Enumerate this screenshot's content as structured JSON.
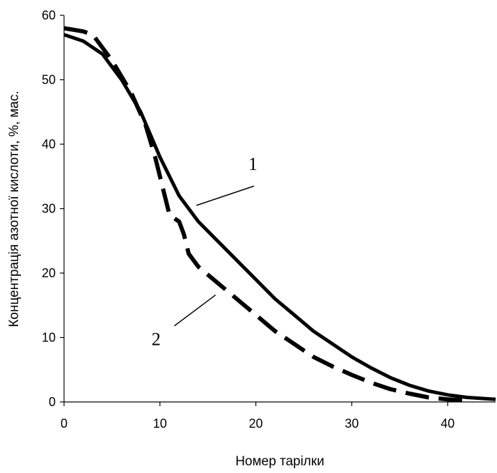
{
  "chart_data": {
    "type": "line",
    "title": "",
    "xlabel": "Номер тарілки",
    "ylabel": "Концентрація азотної кислоти, %, мас.",
    "xlim": [
      0,
      45
    ],
    "ylim": [
      0,
      60
    ],
    "xticks": [
      0,
      10,
      20,
      30,
      40
    ],
    "yticks": [
      0,
      10,
      20,
      30,
      40,
      50,
      60
    ],
    "grid": false,
    "legend": "none",
    "series": [
      {
        "name": "1",
        "style": "solid",
        "color": "#000000",
        "x": [
          0,
          2,
          4,
          6,
          8,
          10,
          12,
          14,
          16,
          18,
          20,
          22,
          24,
          26,
          28,
          30,
          32,
          34,
          36,
          38,
          40,
          42,
          45
        ],
        "y": [
          57,
          56,
          54,
          50,
          45,
          38,
          32,
          28,
          25,
          22,
          19,
          16,
          13.5,
          11,
          9,
          7,
          5.3,
          3.8,
          2.6,
          1.7,
          1.1,
          0.7,
          0.4
        ]
      },
      {
        "name": "2",
        "style": "dashed",
        "color": "#000000",
        "x": [
          0,
          2,
          3,
          5,
          7,
          8.5,
          9.5,
          10,
          10.5,
          11,
          11.5,
          12,
          12.5,
          13,
          14,
          16,
          18,
          20,
          22,
          24,
          26,
          28,
          30,
          32,
          34,
          36,
          38,
          40,
          42
        ],
        "y": [
          58,
          57.5,
          57,
          53,
          48,
          43,
          38,
          35,
          32,
          29,
          28.5,
          28,
          26,
          23,
          21,
          18.5,
          16,
          13.5,
          11,
          9,
          7,
          5.5,
          4.2,
          3,
          2,
          1.3,
          0.7,
          0.4,
          0.2
        ]
      }
    ],
    "annotations": [
      {
        "text": "1",
        "target_series": "1"
      },
      {
        "text": "2",
        "target_series": "2"
      }
    ]
  }
}
